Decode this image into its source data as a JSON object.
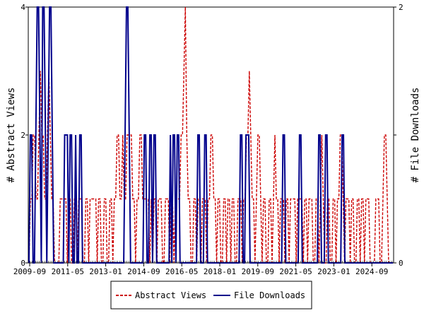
{
  "chart_data": {
    "type": "line",
    "x_tick_labels": [
      "2009-09",
      "2011-05",
      "2013-01",
      "2014-09",
      "2016-05",
      "2018-01",
      "2019-09",
      "2021-05",
      "2023-01",
      "2024-09"
    ],
    "y_left": {
      "label": "# Abstract Views",
      "range": [
        0,
        4
      ],
      "ticks": [
        "0",
        "2",
        "4"
      ]
    },
    "y_right": {
      "label": "# File Downloads",
      "range": [
        0,
        2
      ],
      "ticks": [
        "0",
        "1",
        "2"
      ]
    },
    "grid": false,
    "legend": {
      "placement": "bottom-center"
    },
    "series": [
      {
        "name": "Abstract Views",
        "axis": "left",
        "color": "#cc0000",
        "style": "dashed",
        "values": [
          0,
          1,
          1,
          2,
          2,
          1,
          1,
          2,
          3,
          2,
          2,
          1,
          1,
          2,
          3,
          2,
          1,
          1,
          0,
          0,
          0,
          0,
          1,
          1,
          1,
          1,
          1,
          0,
          1,
          1,
          0,
          0,
          1,
          1,
          0,
          1,
          1,
          1,
          0,
          0,
          1,
          1,
          0,
          1,
          1,
          1,
          1,
          1,
          0,
          1,
          1,
          0,
          0,
          1,
          1,
          0,
          0,
          1,
          1,
          0,
          1,
          1,
          2,
          2,
          1,
          1,
          2,
          1,
          1,
          2,
          2,
          2,
          2,
          1,
          1,
          0,
          1,
          1,
          2,
          2,
          1,
          1,
          1,
          1,
          1,
          0,
          1,
          0,
          1,
          1,
          0,
          1,
          1,
          1,
          0,
          0,
          1,
          1,
          1,
          0,
          1,
          1,
          0,
          1,
          1,
          1,
          1,
          2,
          2,
          3,
          4,
          2,
          1,
          1,
          0,
          0,
          1,
          1,
          0,
          1,
          1,
          0,
          1,
          1,
          1,
          0,
          1,
          1,
          2,
          2,
          1,
          1,
          0,
          1,
          1,
          0,
          0,
          1,
          1,
          0,
          1,
          1,
          0,
          1,
          1,
          0,
          0,
          1,
          1,
          1,
          0,
          1,
          1,
          2,
          2,
          3,
          2,
          1,
          1,
          0,
          1,
          2,
          2,
          1,
          0,
          1,
          1,
          0,
          0,
          1,
          1,
          0,
          1,
          2,
          1,
          1,
          0,
          1,
          1,
          1,
          0,
          1,
          1,
          0,
          1,
          1,
          1,
          1,
          0,
          1,
          1,
          1,
          1,
          0,
          1,
          1,
          0,
          1,
          1,
          1,
          0,
          0,
          1,
          1,
          0,
          1,
          2,
          1,
          0,
          0,
          1,
          1,
          0,
          0,
          1,
          1,
          0,
          1,
          1,
          2,
          2,
          1,
          0,
          1,
          1,
          1,
          0,
          1,
          1,
          0,
          0,
          1,
          1,
          0,
          1,
          1,
          0,
          1,
          1,
          1,
          0,
          0,
          0,
          0,
          1,
          1,
          1,
          0,
          0,
          1,
          2,
          2,
          1,
          0,
          0,
          0,
          0
        ]
      },
      {
        "name": "File Downloads",
        "axis": "right",
        "color": "#00008b",
        "style": "solid",
        "values": [
          0,
          1,
          1,
          0,
          0,
          1,
          2,
          2,
          1,
          0,
          2,
          2,
          1,
          0,
          1,
          2,
          2,
          1,
          0,
          0,
          0,
          0,
          0,
          0,
          0,
          0,
          1,
          1,
          1,
          0,
          1,
          1,
          0,
          0,
          1,
          0,
          0,
          1,
          1,
          0,
          0,
          0,
          0,
          0,
          0,
          0,
          0,
          0,
          0,
          0,
          0,
          0,
          0,
          0,
          0,
          0,
          0,
          0,
          0,
          0,
          0,
          0,
          0,
          0,
          0,
          0,
          0,
          0,
          0,
          0,
          1,
          2,
          2,
          1,
          0,
          0,
          0,
          0,
          0,
          0,
          0,
          0,
          0,
          0,
          1,
          1,
          0,
          0,
          1,
          1,
          0,
          1,
          1,
          0,
          0,
          0,
          0,
          0,
          0,
          0,
          0,
          0,
          0,
          1,
          0,
          1,
          1,
          0,
          1,
          1,
          0,
          0,
          0,
          0,
          0,
          0,
          0,
          0,
          0,
          0,
          0,
          0,
          0,
          1,
          1,
          0,
          0,
          0,
          1,
          1,
          0,
          0,
          0,
          0,
          0,
          0,
          0,
          0,
          0,
          0,
          0,
          0,
          0,
          0,
          0,
          0,
          0,
          0,
          0,
          0,
          0,
          0,
          0,
          0,
          1,
          1,
          0,
          0,
          1,
          1,
          1,
          0,
          0,
          0,
          0,
          0,
          0,
          0,
          0,
          0,
          0,
          0,
          0,
          0,
          0,
          0,
          0,
          0,
          0,
          0,
          0,
          0,
          0,
          0,
          0,
          1,
          1,
          0,
          0,
          0,
          0,
          0,
          0,
          0,
          0,
          0,
          0,
          1,
          1,
          0,
          0,
          0,
          0,
          0,
          0,
          0,
          0,
          0,
          0,
          0,
          0,
          1,
          1,
          0,
          0,
          0,
          1,
          1,
          0,
          0,
          0,
          0,
          0,
          0,
          0,
          0,
          0,
          0,
          1,
          1,
          0,
          0,
          0,
          0,
          0,
          0,
          0,
          0,
          0,
          0,
          0,
          0,
          0,
          0,
          0,
          0,
          0,
          0,
          0,
          0,
          0,
          0,
          0,
          0,
          0,
          0,
          0,
          0,
          0,
          0,
          0,
          0,
          0,
          0,
          0,
          0
        ]
      }
    ]
  }
}
